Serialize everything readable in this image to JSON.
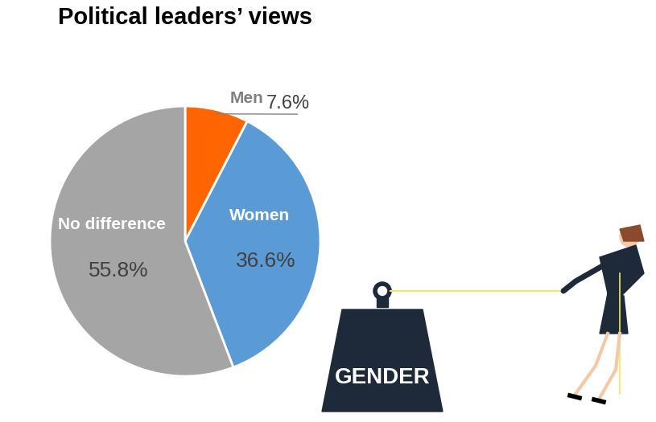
{
  "chart_data": {
    "type": "pie",
    "title": "Political leaders’ views",
    "categories": [
      "Men",
      "Women",
      "No difference"
    ],
    "values": [
      7.6,
      36.6,
      55.8
    ],
    "value_labels": [
      "7.6%",
      "36.6%",
      "55.8%"
    ],
    "colors": [
      "#FF6600",
      "#5B9BD5",
      "#A5A5A5"
    ],
    "data_labels": true,
    "annotations": [
      "GENDER"
    ]
  }
}
